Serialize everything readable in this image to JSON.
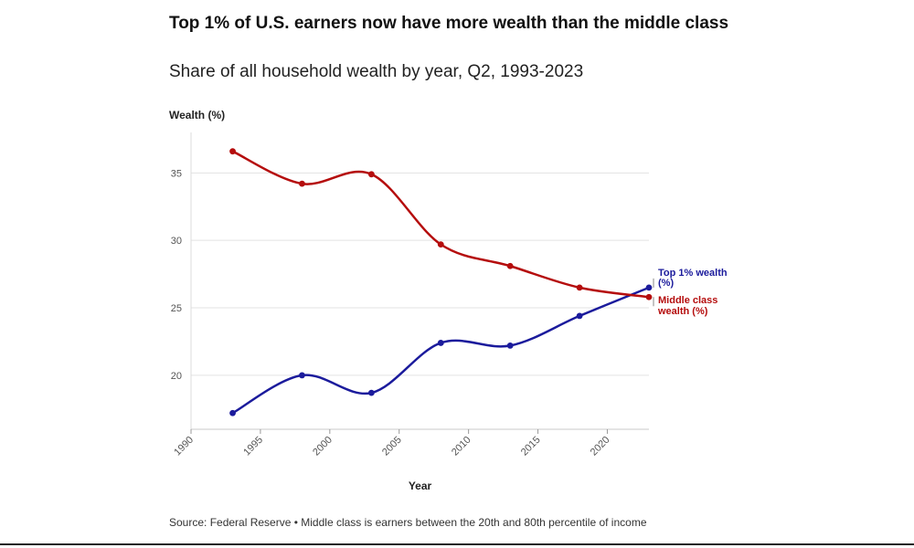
{
  "chart_data": {
    "type": "line",
    "title": "Top 1% of U.S. earners now have more wealth than the middle class",
    "subtitle": "Share of all household wealth by year, Q2, 1993-2023",
    "xlabel": "Year",
    "ylabel": "Wealth (%)",
    "xlim": [
      1990,
      2023
    ],
    "ylim": [
      16,
      38
    ],
    "xticks": [
      1990,
      1995,
      2000,
      2005,
      2010,
      2015,
      2020
    ],
    "yticks": [
      20,
      25,
      30,
      35
    ],
    "grid": true,
    "series": [
      {
        "name": "Top 1% wealth (%)",
        "label_lines": [
          "Top 1% wealth",
          "(%)"
        ],
        "color": "#1b1b9c",
        "x": [
          1993,
          1998,
          2003,
          2008,
          2013,
          2018,
          2023
        ],
        "values": [
          17.2,
          20.0,
          18.7,
          22.4,
          22.2,
          24.4,
          26.5
        ]
      },
      {
        "name": "Middle class wealth (%)",
        "label_lines": [
          "Middle class",
          "wealth (%)"
        ],
        "color": "#b50d0d",
        "x": [
          1993,
          1998,
          2003,
          2008,
          2013,
          2018,
          2023
        ],
        "values": [
          36.6,
          34.2,
          34.9,
          29.7,
          28.1,
          26.5,
          25.8
        ]
      }
    ]
  },
  "source": "Source: Federal Reserve • Middle class is earners between the 20th and 80th percentile of income"
}
